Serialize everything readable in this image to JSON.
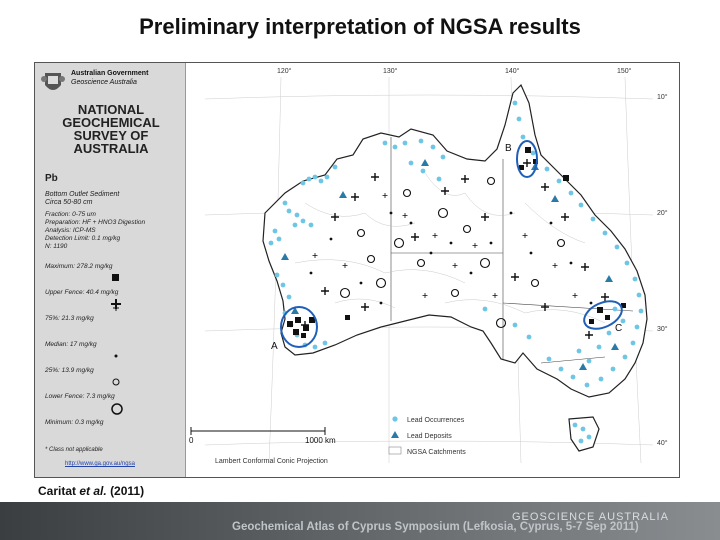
{
  "slide": {
    "title": "Preliminary interpretation of NGSA results",
    "citation_prefix": "Caritat",
    "citation_etal": "et al.",
    "citation_year": "(2011)",
    "footer": "Geochemical Atlas of Cyprus Symposium (Lefkosia, Cyprus, 5-7 Sep 2011)",
    "brand": "GEOSCIENCE AUSTRALIA"
  },
  "legend": {
    "gov_line1": "Australian Government",
    "gov_line2": "Geoscience Australia",
    "survey_title": [
      "NATIONAL",
      "GEOCHEMICAL",
      "SURVEY OF",
      "AUSTRALIA"
    ],
    "element": "Pb",
    "sample_line1": "Bottom Outlet Sediment",
    "sample_line2": "Circa 50-80 cm",
    "method": [
      "Fraction: 0-75 um",
      "Preparation: HF + HNO3 Digestion",
      "Analysis: ICP-MS",
      "Detection Limit: 0.1 mg/kg",
      "N: 1190"
    ],
    "classes": [
      {
        "label": "Maximum: 278.2 mg/kg",
        "symbol": "square-large"
      },
      {
        "label": "Upper Fence: 40.4 mg/kg",
        "symbol": "cross-large"
      },
      {
        "label": "75%: 21.3 mg/kg",
        "symbol": "cross-small"
      },
      {
        "label": "Median: 17 mg/kg",
        "symbol": "dot"
      },
      {
        "label": "25%: 13.9 mg/kg",
        "symbol": "circle-small"
      },
      {
        "label": "Lower Fence: 7.3 mg/kg",
        "symbol": "circle-large"
      },
      {
        "label": "Minimum: 0.3 mg/kg",
        "symbol": "none"
      }
    ],
    "class_note": "* Class not applicable",
    "url": "http://www.ga.gov.au/ngsa"
  },
  "map": {
    "lon_labels": [
      "120°",
      "130°",
      "140°",
      "150°"
    ],
    "lat_labels": [
      "10°",
      "20°",
      "30°",
      "40°"
    ],
    "scale_start": "0",
    "scale_end": "1000 km",
    "projection": "Lambert Conformal Conic Projection",
    "map_legend": [
      "Lead Occurrences",
      "Lead Deposits",
      "NGSA Catchments"
    ],
    "annotations": [
      "A",
      "B",
      "C"
    ],
    "colors": {
      "occurrence": "#6ec6e6",
      "deposit": "#2a7aa8",
      "ellipse": "#1f5fb8",
      "land": "#ffffff",
      "sea": "#ffffff"
    }
  }
}
